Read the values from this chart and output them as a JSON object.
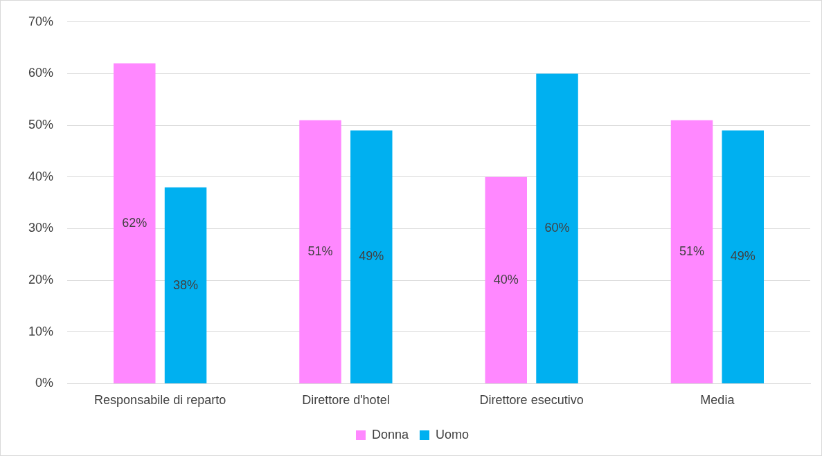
{
  "chart_data": {
    "type": "bar",
    "categories": [
      "Responsabile di reparto",
      "Direttore d'hotel",
      "Direttore esecutivo",
      "Media"
    ],
    "series": [
      {
        "name": "Donna",
        "color": "#ff88ff",
        "values": [
          62,
          51,
          40,
          51
        ],
        "value_labels": [
          "62%",
          "51%",
          "40%",
          "51%"
        ]
      },
      {
        "name": "Uomo",
        "color": "#00b0f0",
        "values": [
          38,
          49,
          60,
          49
        ],
        "value_labels": [
          "38%",
          "49%",
          "60%",
          "49%"
        ]
      }
    ],
    "ylim": [
      0,
      70
    ],
    "yticks": [
      {
        "value": 0,
        "label": "0%"
      },
      {
        "value": 10,
        "label": "10%"
      },
      {
        "value": 20,
        "label": "20%"
      },
      {
        "value": 30,
        "label": "30%"
      },
      {
        "value": 40,
        "label": "40%"
      },
      {
        "value": 50,
        "label": "50%"
      },
      {
        "value": 60,
        "label": "60%"
      },
      {
        "value": 70,
        "label": "70%"
      }
    ],
    "grid": "y",
    "legend": "bottom"
  }
}
